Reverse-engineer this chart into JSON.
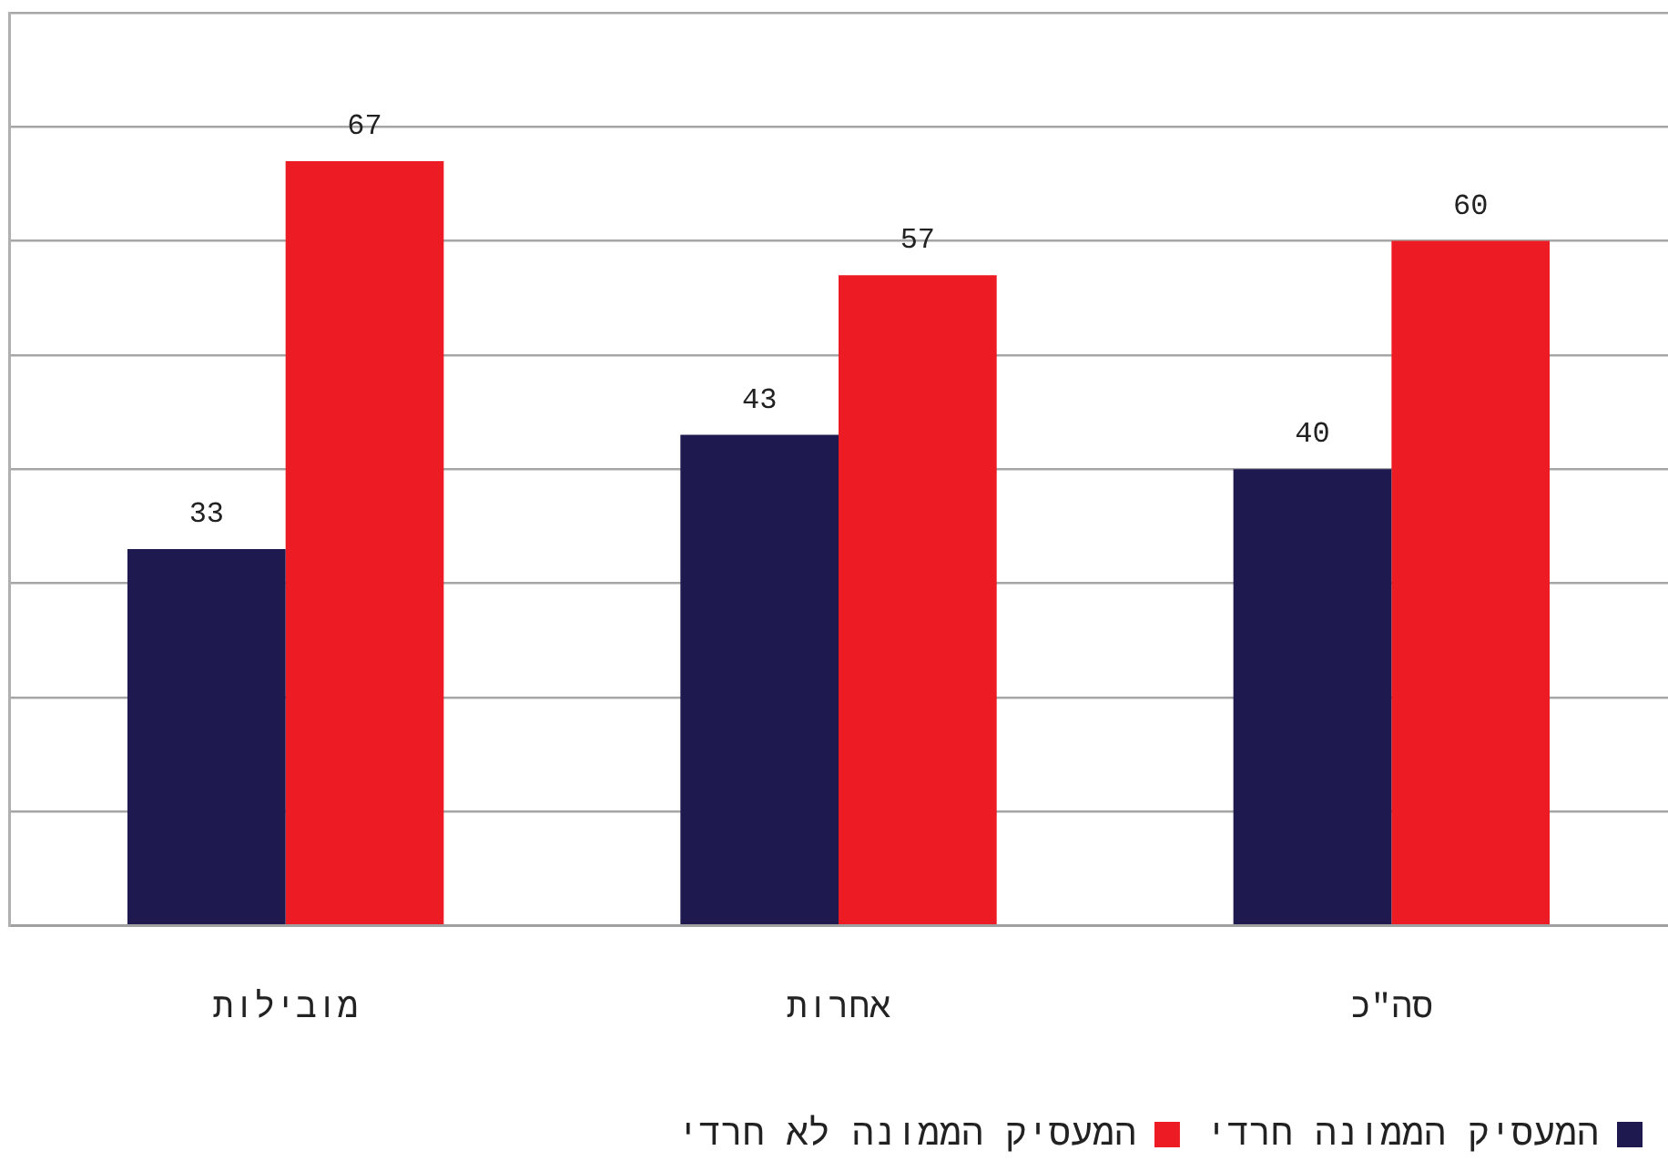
{
  "chart_data": {
    "type": "bar",
    "categories": [
      "מובילות",
      "אחרות",
      "סה\"כ"
    ],
    "series": [
      {
        "name": "המעסיק הממונה חרדי",
        "color": "#1e1a4f",
        "values": [
          33,
          43,
          40
        ]
      },
      {
        "name": "המעסיק הממונה לא חרדי",
        "color": "#ed1c24",
        "values": [
          67,
          57,
          60
        ]
      }
    ],
    "ylim": [
      0,
      80
    ],
    "yticks": [
      0,
      10,
      20,
      30,
      40,
      50,
      60,
      70,
      80
    ],
    "grid": "y",
    "tick_labels": "x",
    "data_labels": true,
    "legend": "bottom right"
  }
}
